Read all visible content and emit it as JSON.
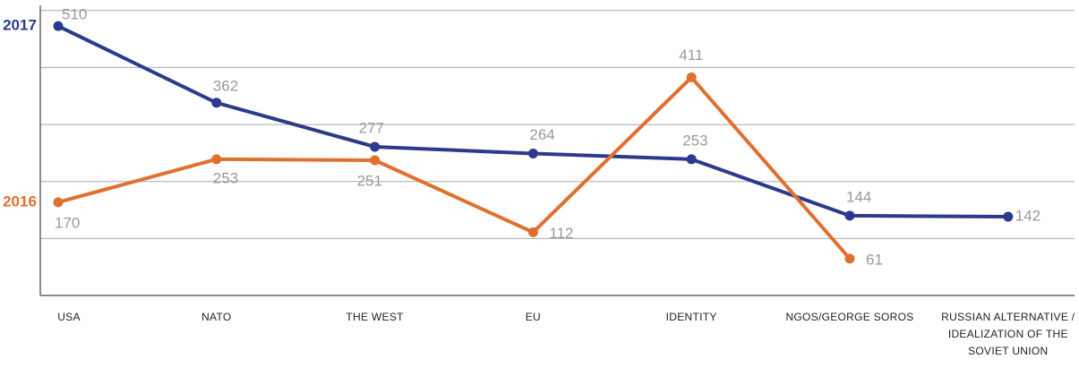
{
  "chart_data": {
    "type": "line",
    "categories": [
      "USA",
      "NATO",
      "THE WEST",
      "EU",
      "IDENTITY",
      "NGOS/GEORGE SOROS",
      "RUSSIAN ALTERNATIVE / IDEALIZATION OF THE SOVIET UNION"
    ],
    "series": [
      {
        "name": "2017",
        "color": "#2b3a8c",
        "values": [
          510,
          362,
          277,
          264,
          253,
          144,
          142
        ]
      },
      {
        "name": "2016",
        "color": "#e0702e",
        "values": [
          170,
          253,
          251,
          112,
          411,
          61,
          null
        ]
      }
    ],
    "ylim": [
      -10,
      550
    ],
    "yticks": [
      100,
      210,
      320,
      430,
      540
    ],
    "grid": true
  }
}
